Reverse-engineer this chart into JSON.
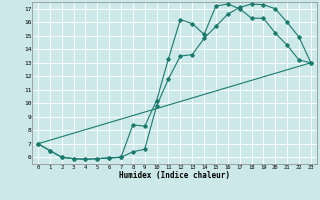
{
  "xlabel": "Humidex (Indice chaleur)",
  "ylabel": "",
  "xlim": [
    -0.5,
    23.5
  ],
  "ylim": [
    5.5,
    17.5
  ],
  "yticks": [
    6,
    7,
    8,
    9,
    10,
    11,
    12,
    13,
    14,
    15,
    16,
    17
  ],
  "xticks": [
    0,
    1,
    2,
    3,
    4,
    5,
    6,
    7,
    8,
    9,
    10,
    11,
    12,
    13,
    14,
    15,
    16,
    17,
    18,
    19,
    20,
    21,
    22,
    23
  ],
  "background_color": "#cce8e8",
  "grid_color": "#aacccc",
  "line_color": "#1a7a6e",
  "line1_x": [
    0,
    1,
    2,
    3,
    4,
    5,
    6,
    7,
    8,
    9,
    10,
    11,
    12,
    13,
    14,
    15,
    16,
    17,
    18,
    19,
    20,
    21,
    22,
    23
  ],
  "line1_y": [
    7.0,
    6.5,
    6.0,
    5.9,
    5.85,
    5.9,
    5.95,
    6.0,
    8.4,
    8.3,
    10.2,
    13.3,
    16.2,
    15.9,
    15.1,
    17.2,
    17.35,
    17.0,
    16.3,
    16.3,
    15.2,
    14.3,
    13.2,
    13.0
  ],
  "line2_x": [
    0,
    1,
    2,
    3,
    4,
    5,
    6,
    7,
    8,
    9,
    10,
    11,
    12,
    13,
    14,
    15,
    16,
    17,
    18,
    19,
    20,
    21,
    22,
    23
  ],
  "line2_y": [
    7.0,
    6.5,
    6.0,
    5.9,
    5.85,
    5.9,
    5.95,
    6.0,
    6.4,
    6.6,
    9.8,
    11.8,
    13.5,
    13.6,
    14.8,
    15.7,
    16.6,
    17.1,
    17.35,
    17.3,
    17.0,
    16.0,
    14.9,
    13.0
  ],
  "line3_x": [
    0,
    23
  ],
  "line3_y": [
    7.0,
    13.0
  ]
}
